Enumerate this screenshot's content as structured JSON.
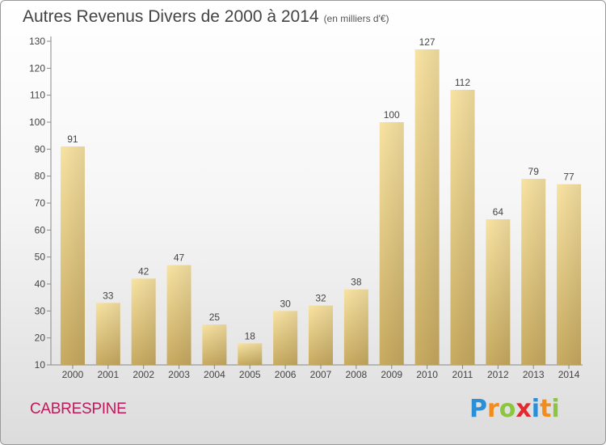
{
  "header": {
    "title": "Autres Revenus Divers de 2000 à 2014",
    "unit": "(en milliers d'€)"
  },
  "footer": {
    "commune": "CABRESPINE",
    "logo_letters": [
      {
        "ch": "P",
        "color": "#2a8fd6"
      },
      {
        "ch": "r",
        "color": "#f28c1c"
      },
      {
        "ch": "o",
        "color": "#8cc63f"
      },
      {
        "ch": "x",
        "color": "#e5282d"
      },
      {
        "ch": "i",
        "color": "#2a8fd6"
      },
      {
        "ch": "t",
        "color": "#f28c1c"
      },
      {
        "ch": "i",
        "color": "#8cc63f"
      }
    ]
  },
  "chart_data": {
    "type": "bar",
    "title": "Autres Revenus Divers de 2000 à 2014",
    "categories": [
      "2000",
      "2001",
      "2002",
      "2003",
      "2004",
      "2005",
      "2006",
      "2007",
      "2008",
      "2009",
      "2010",
      "2011",
      "2012",
      "2013",
      "2014"
    ],
    "values": [
      91,
      33,
      42,
      47,
      25,
      18,
      30,
      32,
      38,
      100,
      127,
      112,
      64,
      79,
      77
    ],
    "ylim": [
      10,
      130
    ],
    "yticks": [
      10,
      20,
      30,
      40,
      50,
      60,
      70,
      80,
      90,
      100,
      110,
      120,
      130
    ],
    "grid": false,
    "bar_color": "#e8d08a"
  }
}
